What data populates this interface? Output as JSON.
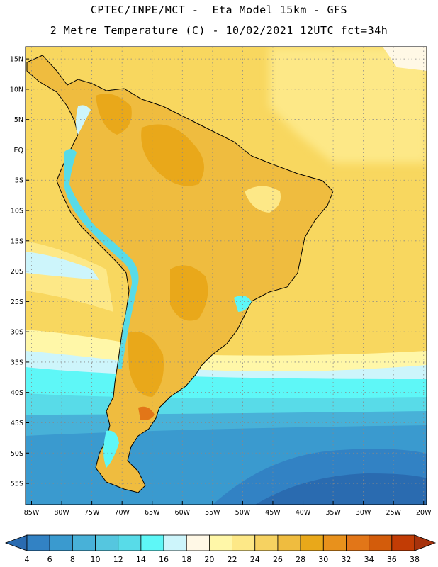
{
  "title_line1": "CPTEC/INPE/MCT -  Eta Model 15km - GFS",
  "title_line2": "2 Metre Temperature (C) - 10/02/2021 12UTC fct=34h",
  "lat_labels": [
    "15N",
    "10N",
    "5N",
    "EQ",
    "5S",
    "10S",
    "15S",
    "20S",
    "25S",
    "30S",
    "35S",
    "40S",
    "45S",
    "50S",
    "55S"
  ],
  "lon_labels": [
    "85W",
    "80W",
    "75W",
    "70W",
    "65W",
    "60W",
    "55W",
    "50W",
    "45W",
    "40W",
    "35W",
    "30W",
    "25W",
    "20W"
  ],
  "colorbar": {
    "levels": [
      "4",
      "6",
      "8",
      "10",
      "12",
      "14",
      "16",
      "18",
      "20",
      "22",
      "24",
      "26",
      "28",
      "30",
      "32",
      "34",
      "36",
      "38"
    ],
    "colors": [
      "#2a6bb0",
      "#3282c4",
      "#3a9acf",
      "#48b1d8",
      "#55c6df",
      "#58dbe8",
      "#5ef7f7",
      "#cdf5fb",
      "#fff8e6",
      "#fff7a8",
      "#fde887",
      "#f6d261",
      "#efbc3f",
      "#e9a81a",
      "#e8911c",
      "#e27618",
      "#d35c0b",
      "#c23c05",
      "#a7320c"
    ]
  },
  "map": {
    "lon_range": [
      -86,
      -19.5
    ],
    "lat_range": [
      -58.5,
      17
    ],
    "ocean_base_color": "#f8d75f",
    "grid": "dotted"
  }
}
